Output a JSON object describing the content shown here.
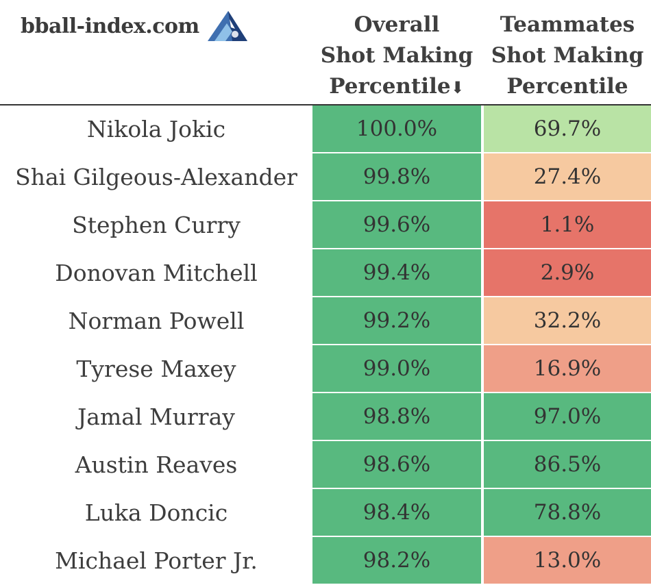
{
  "header": {
    "brand": "bball-index.com",
    "logo_icon": "mountain-logo-icon",
    "col_overall": [
      "Overall",
      "Shot Making",
      "Percentile"
    ],
    "col_overall_sort": "⬇",
    "col_team": [
      "Teammates",
      "Shot Making",
      "Percentile"
    ]
  },
  "colors": {
    "dark_green": "#58b97f",
    "light_green": "#b9e3a5",
    "peach": "#f6c9a0",
    "salmon": "#ef9f88",
    "red": "#e67469"
  },
  "chart_data": {
    "type": "table",
    "columns": [
      "",
      "Overall Shot Making Percentile",
      "Teammates Shot Making Percentile"
    ],
    "sorted_by": "Overall Shot Making Percentile",
    "rows": [
      {
        "player": "Nikola Jokic",
        "overall": "100.0%",
        "teammates": "69.7%"
      },
      {
        "player": "Shai Gilgeous-Alexander",
        "overall": "99.8%",
        "teammates": "27.4%"
      },
      {
        "player": "Stephen Curry",
        "overall": "99.6%",
        "teammates": "1.1%"
      },
      {
        "player": "Donovan Mitchell",
        "overall": "99.4%",
        "teammates": "2.9%"
      },
      {
        "player": "Norman Powell",
        "overall": "99.2%",
        "teammates": "32.2%"
      },
      {
        "player": "Tyrese Maxey",
        "overall": "99.0%",
        "teammates": "16.9%"
      },
      {
        "player": "Jamal Murray",
        "overall": "98.8%",
        "teammates": "97.0%"
      },
      {
        "player": "Austin Reaves",
        "overall": "98.6%",
        "teammates": "86.5%"
      },
      {
        "player": "Luka Doncic",
        "overall": "98.4%",
        "teammates": "78.8%"
      },
      {
        "player": "Michael Porter Jr.",
        "overall": "98.2%",
        "teammates": "13.0%"
      }
    ]
  }
}
